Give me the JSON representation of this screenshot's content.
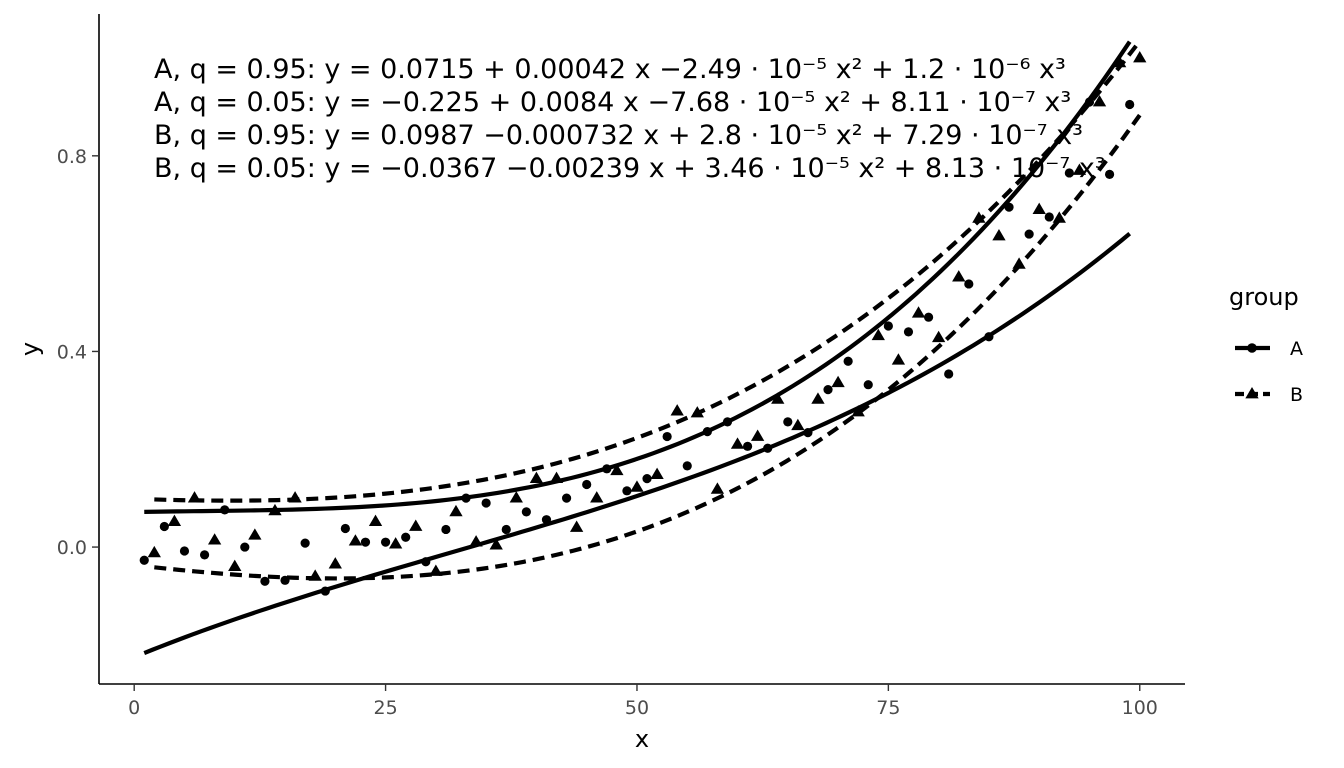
{
  "chart_data": {
    "type": "scatter",
    "xlabel": "x",
    "ylabel": "y",
    "xlim": [
      -3.5,
      104.5
    ],
    "ylim": [
      -0.28,
      1.09
    ],
    "x_ticks": [
      0,
      25,
      50,
      75,
      100
    ],
    "x_tick_labels": [
      "0",
      "25",
      "50",
      "75",
      "100"
    ],
    "y_ticks": [
      0.0,
      0.4,
      0.8
    ],
    "y_tick_labels": [
      "0.0",
      "0.4",
      "0.8"
    ],
    "grid": false,
    "legend": {
      "title": "group",
      "position": "right",
      "entries": [
        {
          "label": "A",
          "shape": "circle",
          "linetype": "solid"
        },
        {
          "label": "B",
          "shape": "triangle",
          "linetype": "dashed"
        }
      ]
    },
    "annotations": [
      "A, q = 0.95: y = 0.0715 + 0.00042 x −2.49 · 10⁻⁵ x² + 1.2 · 10⁻⁶ x³",
      "A, q = 0.05: y = −0.225 + 0.0084 x −7.68 · 10⁻⁵ x² + 8.11 · 10⁻⁷ x³",
      "B, q = 0.95: y = 0.0987 −0.000732 x + 2.8 · 10⁻⁵ x² + 7.29 · 10⁻⁷ x³",
      "B, q = 0.05: y = −0.0367 −0.00239 x + 3.46 · 10⁻⁵ x² + 8.13 · 10⁻⁷ x³"
    ],
    "series": [
      {
        "name": "A",
        "marker": "circle",
        "x": [
          1,
          3,
          5,
          7,
          9,
          11,
          13,
          15,
          17,
          19,
          21,
          23,
          25,
          27,
          29,
          31,
          33,
          35,
          37,
          39,
          41,
          43,
          45,
          47,
          49,
          51,
          53,
          55,
          57,
          59,
          61,
          63,
          65,
          67,
          69,
          71,
          73,
          75,
          77,
          79,
          81,
          83,
          85,
          87,
          89,
          91,
          93,
          95,
          97,
          99
        ],
        "y": [
          -0.027,
          0.042,
          -0.008,
          -0.016,
          0.076,
          0.0,
          -0.07,
          -0.068,
          0.008,
          -0.09,
          0.038,
          0.01,
          0.01,
          0.02,
          -0.03,
          0.036,
          0.1,
          0.09,
          0.036,
          0.072,
          0.056,
          0.1,
          0.128,
          0.16,
          0.115,
          0.14,
          0.226,
          0.166,
          0.236,
          0.256,
          0.206,
          0.202,
          0.256,
          0.234,
          0.322,
          0.38,
          0.332,
          0.452,
          0.44,
          0.47,
          0.354,
          0.538,
          0.43,
          0.695,
          0.64,
          0.675,
          0.765,
          0.91,
          0.762,
          0.905
        ],
        "quantile_fits": [
          {
            "q": 0.95,
            "coef": [
              0.0715,
              0.00042,
              -2.49e-05,
              1.2e-06
            ],
            "linetype": "solid",
            "x_range": [
              1,
              99
            ]
          },
          {
            "q": 0.05,
            "coef": [
              -0.225,
              0.0084,
              -7.68e-05,
              8.11e-07
            ],
            "linetype": "solid",
            "x_range": [
              1,
              99
            ]
          }
        ]
      },
      {
        "name": "B",
        "marker": "triangle",
        "x": [
          2,
          4,
          6,
          8,
          10,
          12,
          14,
          16,
          18,
          20,
          22,
          24,
          26,
          28,
          30,
          32,
          34,
          36,
          38,
          40,
          42,
          44,
          46,
          48,
          50,
          52,
          54,
          56,
          58,
          60,
          62,
          64,
          66,
          68,
          70,
          72,
          74,
          76,
          78,
          80,
          82,
          84,
          86,
          88,
          90,
          92,
          94,
          96,
          98,
          100
        ],
        "y": [
          -0.012,
          0.052,
          0.1,
          0.014,
          -0.04,
          0.024,
          0.074,
          0.1,
          -0.06,
          -0.035,
          0.012,
          0.052,
          0.006,
          0.042,
          -0.05,
          0.072,
          0.01,
          0.004,
          0.1,
          0.14,
          0.14,
          0.04,
          0.1,
          0.156,
          0.122,
          0.148,
          0.278,
          0.274,
          0.118,
          0.21,
          0.226,
          0.302,
          0.248,
          0.302,
          0.336,
          0.276,
          0.432,
          0.382,
          0.478,
          0.428,
          0.552,
          0.672,
          0.636,
          0.578,
          0.69,
          0.672,
          0.77,
          0.91,
          0.99,
          1.0
        ],
        "quantile_fits": [
          {
            "q": 0.95,
            "coef": [
              0.0987,
              -0.000732,
              2.8e-05,
              7.29e-07
            ],
            "linetype": "dashed",
            "x_range": [
              2,
              100
            ]
          },
          {
            "q": 0.05,
            "coef": [
              -0.0367,
              -0.00239,
              3.46e-05,
              8.13e-07
            ],
            "linetype": "dashed",
            "x_range": [
              2,
              100
            ]
          }
        ]
      }
    ]
  }
}
